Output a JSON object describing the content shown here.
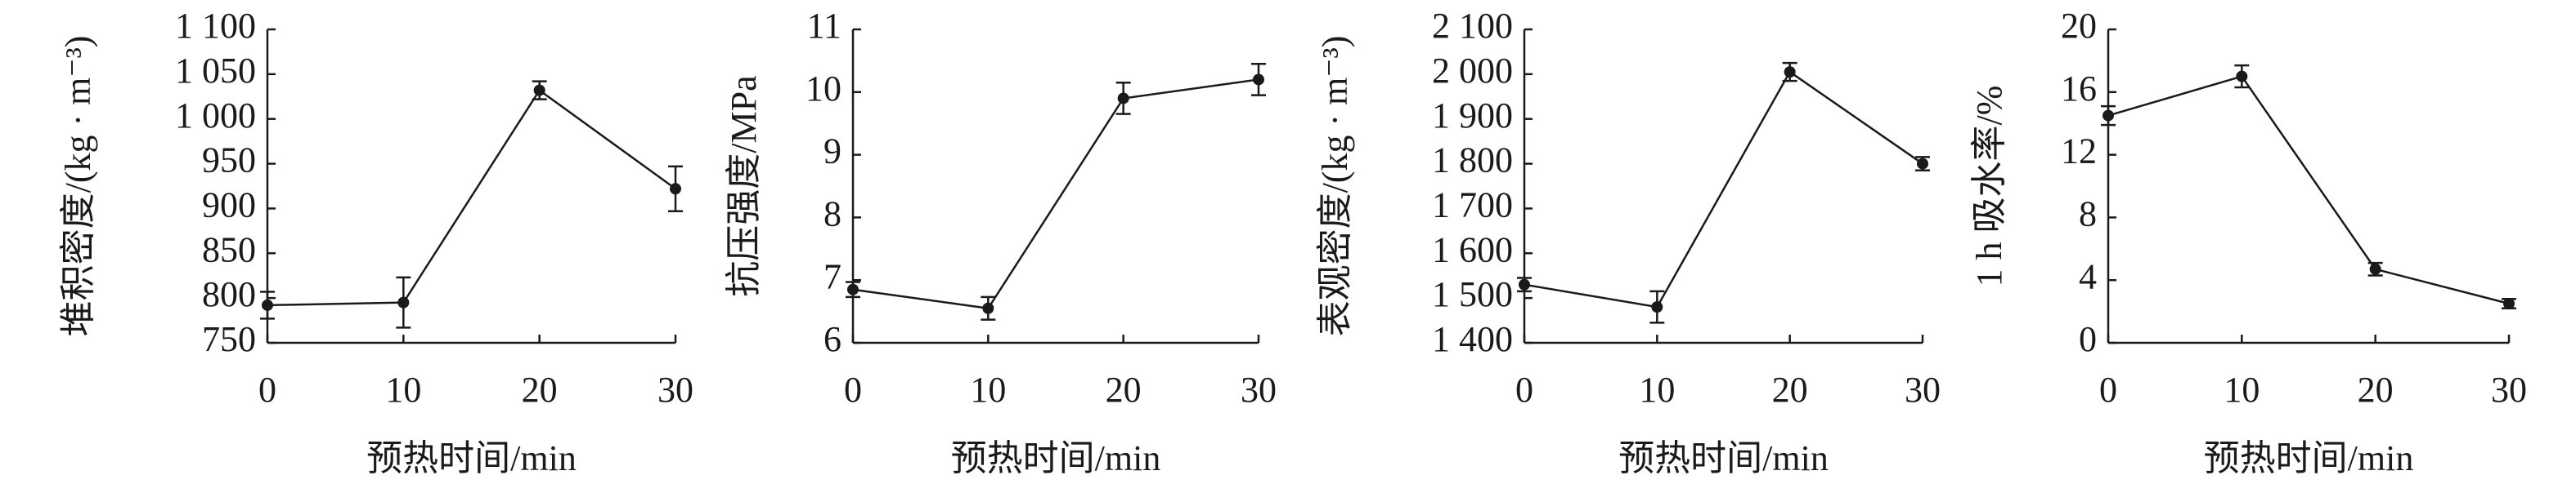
{
  "chart_data": [
    {
      "type": "line",
      "y_label": "堆积密度/(kg · m⁻³)",
      "x_label": "预热时间/min",
      "x": [
        0,
        10,
        20,
        30
      ],
      "xlim": [
        0,
        30
      ],
      "xticks": [
        0,
        10,
        20,
        30
      ],
      "ylim": [
        750,
        1100
      ],
      "yticks": [
        750,
        800,
        850,
        900,
        950,
        {
          "value": 1000,
          "label": "1 000"
        },
        {
          "value": 1050,
          "label": "1 050"
        },
        {
          "value": 1100,
          "label": "1 100"
        }
      ],
      "values": [
        792,
        795,
        1032,
        922
      ],
      "errors": [
        15,
        28,
        10,
        25
      ],
      "color": "#1a1a1a"
    },
    {
      "type": "line",
      "y_label": "抗压强度/MPa",
      "x_label": "预热时间/min",
      "x": [
        0,
        10,
        20,
        30
      ],
      "xlim": [
        0,
        30
      ],
      "xticks": [
        0,
        10,
        20,
        30
      ],
      "ylim": [
        6,
        11
      ],
      "yticks": [
        6,
        7,
        8,
        9,
        10,
        11
      ],
      "values": [
        6.85,
        6.55,
        9.9,
        10.2
      ],
      "errors": [
        0.12,
        0.18,
        0.25,
        0.25
      ],
      "color": "#1a1a1a"
    },
    {
      "type": "line",
      "y_label": "表观密度/(kg · m⁻³)",
      "x_label": "预热时间/min",
      "x": [
        0,
        10,
        20,
        30
      ],
      "xlim": [
        0,
        30
      ],
      "xticks": [
        0,
        10,
        20,
        30
      ],
      "ylim": [
        1400,
        2100
      ],
      "yticks": [
        {
          "value": 1400,
          "label": "1 400"
        },
        {
          "value": 1500,
          "label": "1 500"
        },
        {
          "value": 1600,
          "label": "1 600"
        },
        {
          "value": 1700,
          "label": "1 700"
        },
        {
          "value": 1800,
          "label": "1 800"
        },
        {
          "value": 1900,
          "label": "1 900"
        },
        {
          "value": 2000,
          "label": "2 000"
        },
        {
          "value": 2100,
          "label": "2 100"
        }
      ],
      "values": [
        1530,
        1480,
        2005,
        1800
      ],
      "errors": [
        15,
        35,
        20,
        15
      ],
      "color": "#1a1a1a"
    },
    {
      "type": "line",
      "y_label": "1 h 吸水率/%",
      "x_label": "预热时间/min",
      "x": [
        0,
        10,
        20,
        30
      ],
      "xlim": [
        0,
        30
      ],
      "xticks": [
        0,
        10,
        20,
        30
      ],
      "ylim": [
        0,
        20
      ],
      "yticks": [
        0,
        4,
        8,
        12,
        16,
        20
      ],
      "values": [
        14.5,
        17,
        4.7,
        2.5
      ],
      "errors": [
        0.6,
        0.7,
        0.4,
        0.3
      ],
      "color": "#1a1a1a"
    }
  ]
}
